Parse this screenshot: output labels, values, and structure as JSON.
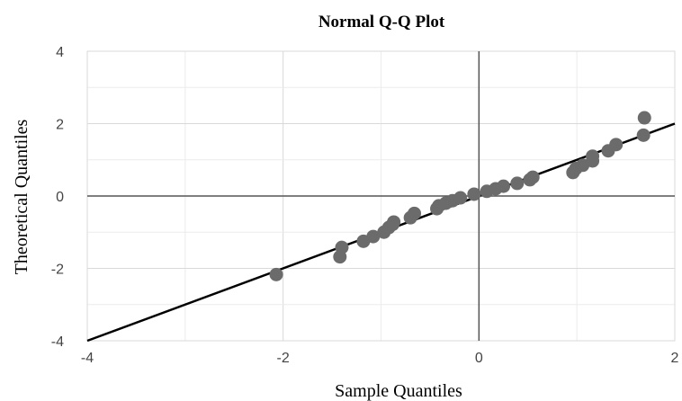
{
  "chart_data": {
    "type": "scatter",
    "title": "Normal Q-Q Plot",
    "xlabel": "Sample Quantiles",
    "ylabel": "Theoretical Quantiles",
    "xlim": [
      -4,
      2
    ],
    "ylim": [
      -4,
      4
    ],
    "x_ticks": [
      "-4",
      "-2",
      "0",
      "2"
    ],
    "y_ticks": [
      "4",
      "2",
      "0",
      "-2",
      "-4"
    ],
    "grid": true,
    "reference_line": {
      "x": [
        -4,
        2
      ],
      "y": [
        -4,
        2
      ]
    },
    "colors": {
      "points": "#6b6b6b",
      "line": "#000000",
      "grid": "#d9d9d9"
    },
    "points": [
      {
        "x": -2.07,
        "y": -2.17
      },
      {
        "x": -1.42,
        "y": -1.68
      },
      {
        "x": -1.4,
        "y": -1.42
      },
      {
        "x": -1.18,
        "y": -1.25
      },
      {
        "x": -1.08,
        "y": -1.12
      },
      {
        "x": -0.97,
        "y": -1.0
      },
      {
        "x": -0.92,
        "y": -0.87
      },
      {
        "x": -0.88,
        "y": -0.78
      },
      {
        "x": -0.87,
        "y": -0.72
      },
      {
        "x": -0.7,
        "y": -0.6
      },
      {
        "x": -0.66,
        "y": -0.48
      },
      {
        "x": -0.43,
        "y": -0.35
      },
      {
        "x": -0.41,
        "y": -0.27
      },
      {
        "x": -0.34,
        "y": -0.2
      },
      {
        "x": -0.27,
        "y": -0.13
      },
      {
        "x": -0.19,
        "y": -0.05
      },
      {
        "x": -0.05,
        "y": 0.05
      },
      {
        "x": 0.08,
        "y": 0.13
      },
      {
        "x": 0.17,
        "y": 0.2
      },
      {
        "x": 0.25,
        "y": 0.27
      },
      {
        "x": 0.39,
        "y": 0.35
      },
      {
        "x": 0.52,
        "y": 0.45
      },
      {
        "x": 0.55,
        "y": 0.52
      },
      {
        "x": 0.96,
        "y": 0.65
      },
      {
        "x": 0.99,
        "y": 0.76
      },
      {
        "x": 1.06,
        "y": 0.85
      },
      {
        "x": 1.16,
        "y": 0.97
      },
      {
        "x": 1.16,
        "y": 1.1
      },
      {
        "x": 1.32,
        "y": 1.25
      },
      {
        "x": 1.4,
        "y": 1.42
      },
      {
        "x": 1.68,
        "y": 1.68
      },
      {
        "x": 1.69,
        "y": 2.16
      }
    ]
  }
}
